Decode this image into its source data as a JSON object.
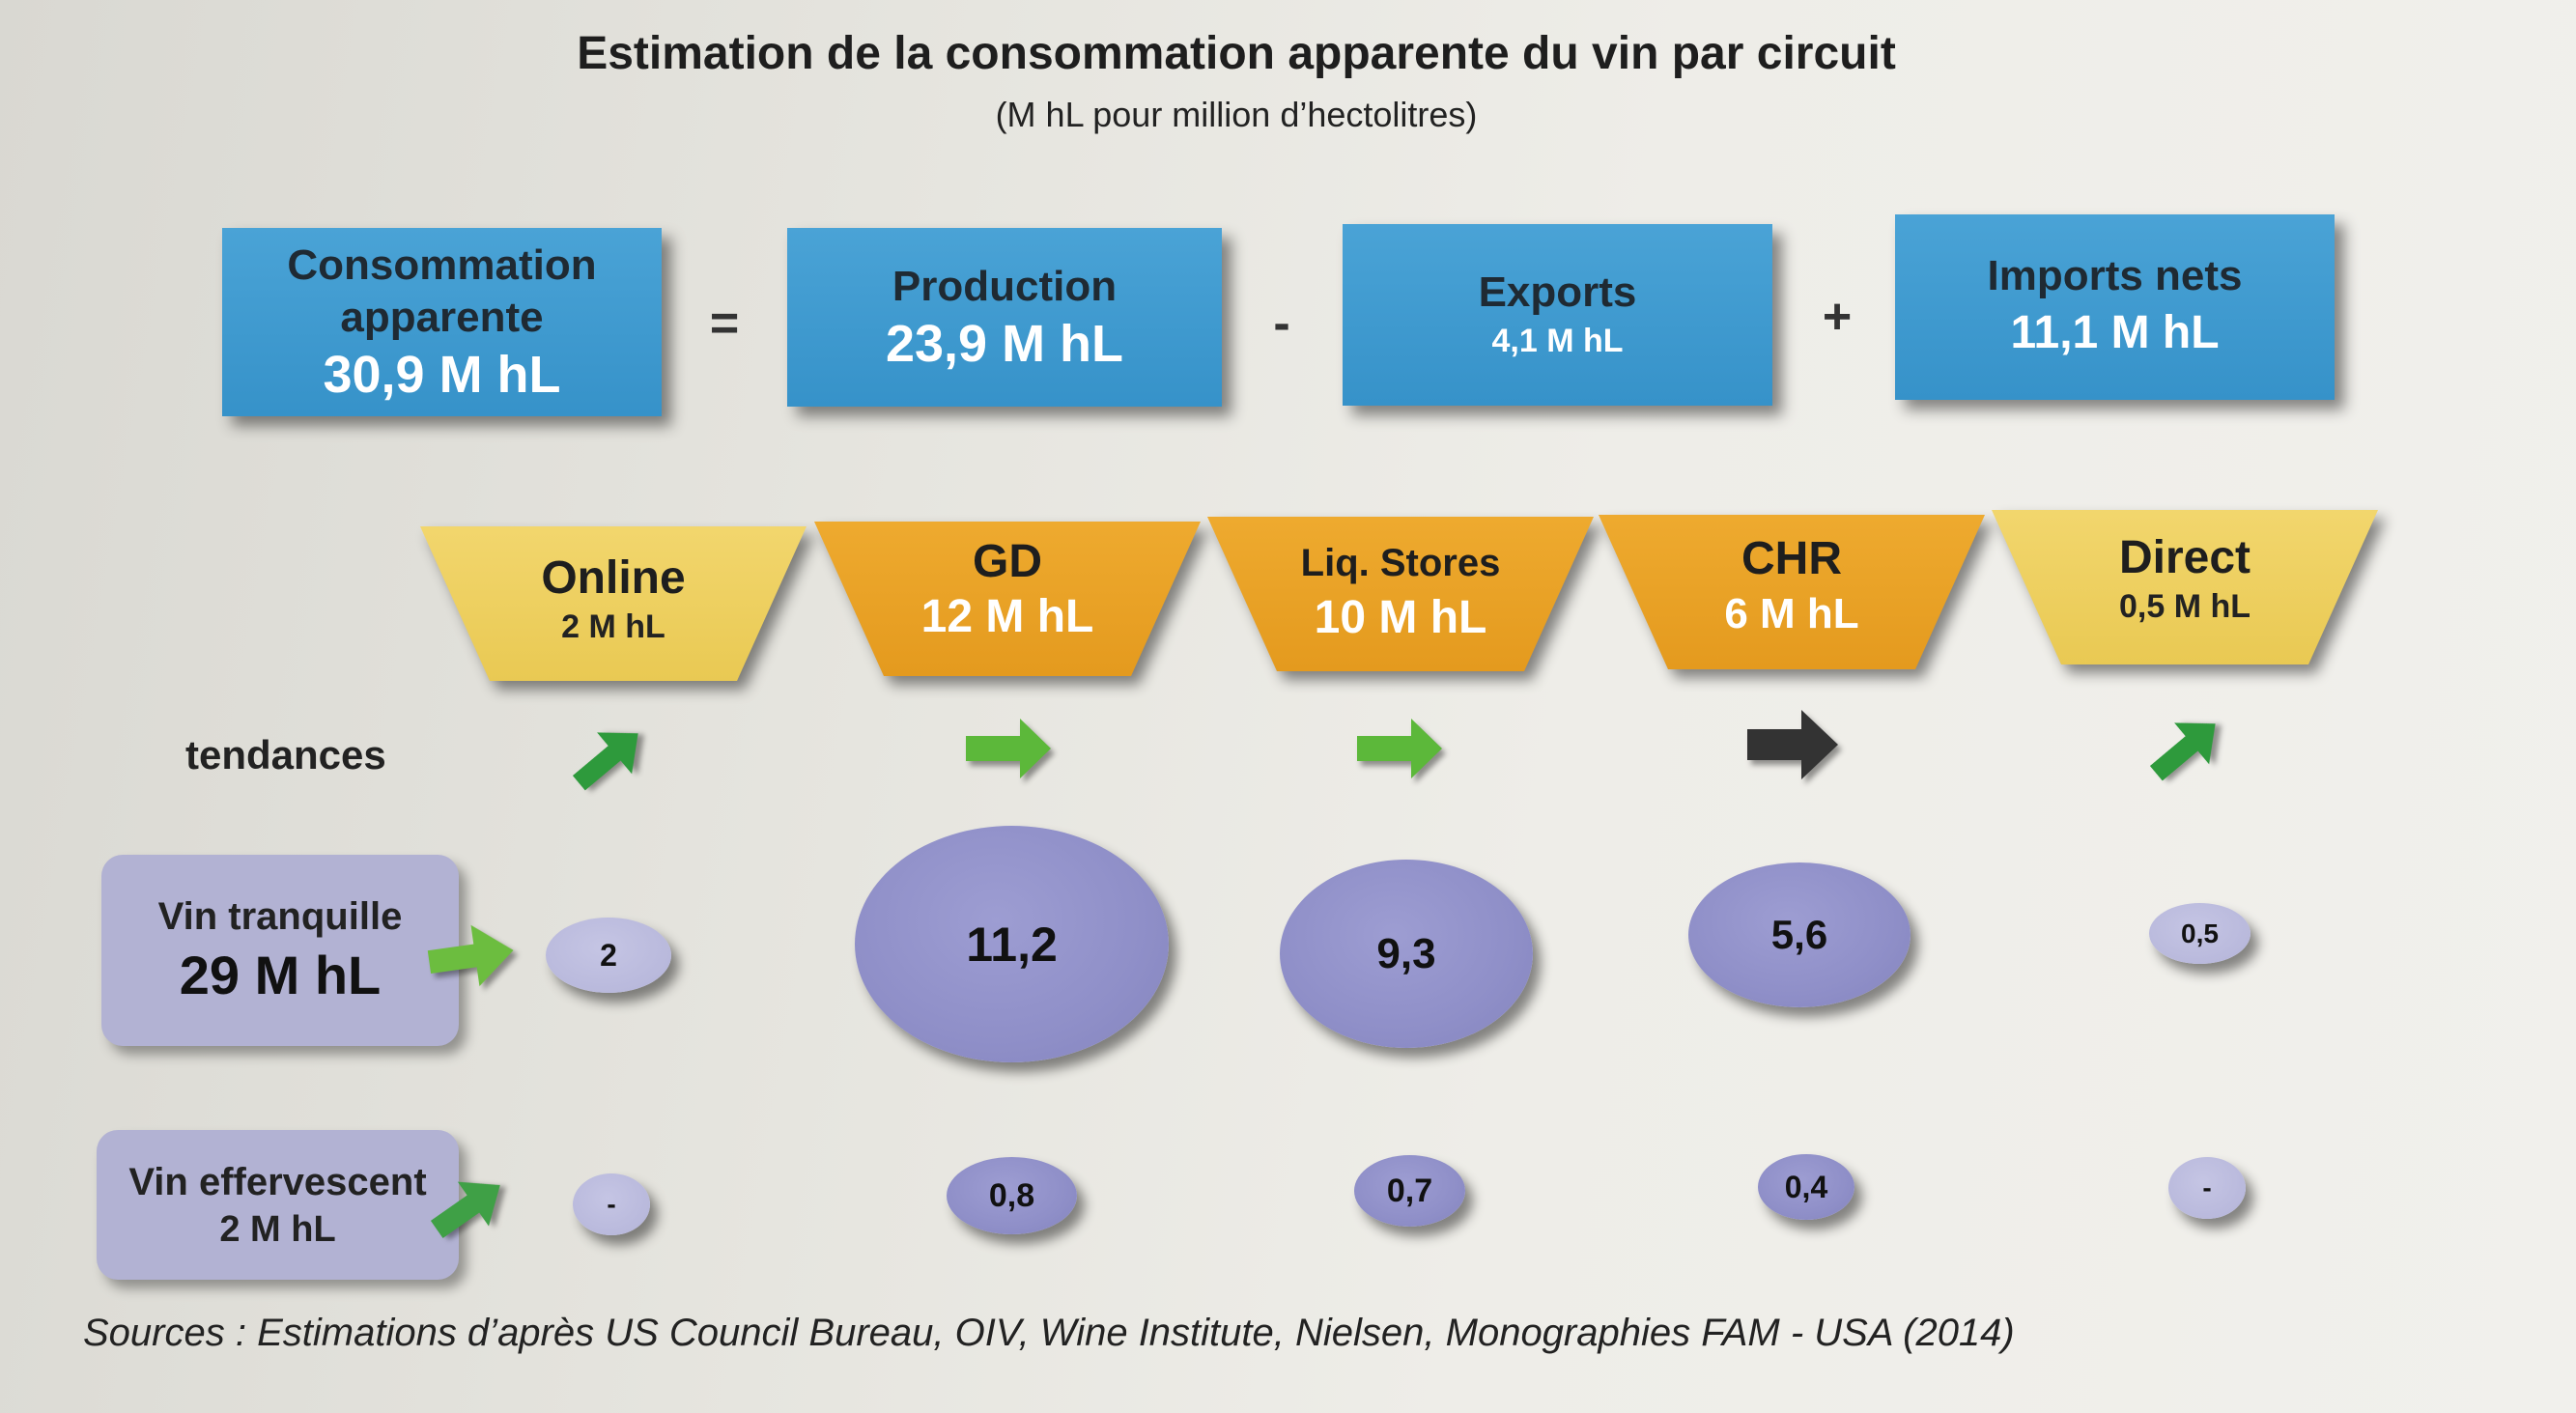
{
  "title": "Estimation de la consommation apparente du vin par circuit",
  "subtitle": "(M hL pour million d’hectolitres)",
  "equation": {
    "consommation": {
      "label_line1": "Consommation",
      "label_line2": "apparente",
      "value": "30,9 M hL"
    },
    "op1": "=",
    "production": {
      "label": "Production",
      "value": "23,9 M hL"
    },
    "op2": "-",
    "exports": {
      "label": "Exports",
      "value": "4,1 M hL"
    },
    "op3": "+",
    "imports": {
      "label": "Imports nets",
      "value": "11,1 M hL"
    }
  },
  "channels": [
    {
      "name": "Online",
      "value": "2 M hL",
      "color": "#f0d264",
      "trend": "up",
      "trend_color": "#2e9a3c"
    },
    {
      "name": "GD",
      "value": "12 M hL",
      "color": "#eba52a",
      "trend": "right",
      "trend_color": "#5cb83a"
    },
    {
      "name": "Liq. Stores",
      "value": "10 M hL",
      "color": "#eba52a",
      "trend": "right",
      "trend_color": "#5cb83a"
    },
    {
      "name": "CHR",
      "value": "6 M hL",
      "color": "#eba52a",
      "trend": "right",
      "trend_color": "#333333"
    },
    {
      "name": "Direct",
      "value": "0,5 M hL",
      "color": "#f0d264",
      "trend": "up",
      "trend_color": "#2e9a3c"
    }
  ],
  "tendances_label": "tendances",
  "vin_tranquille": {
    "label": "Vin tranquille",
    "value": "29 M hL",
    "values": [
      "2",
      "11,2",
      "9,3",
      "5,6",
      "0,5"
    ]
  },
  "vin_effervescent": {
    "label": "Vin effervescent",
    "value": "2 M hL",
    "values": [
      "-",
      "0,8",
      "0,7",
      "0,4",
      "-"
    ]
  },
  "sources": "Sources : Estimations d’après US Council Bureau, OIV, Wine Institute, Nielsen, Monographies FAM - USA (2014)"
}
